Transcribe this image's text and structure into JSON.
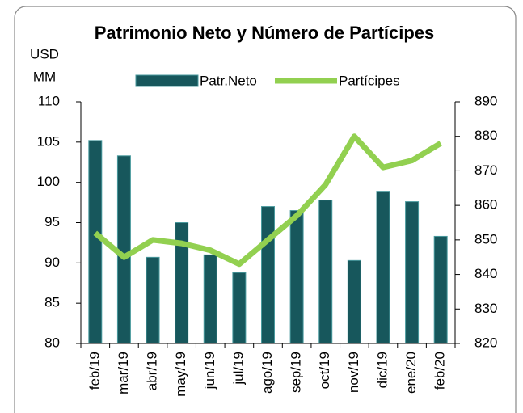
{
  "chart_data": {
    "type": "bar-line",
    "title": "Patrimonio Neto y Número de Partícipes",
    "y_label": [
      "USD",
      "MM"
    ],
    "categories": [
      "feb/19",
      "mar/19",
      "abr/19",
      "may/19",
      "jun/19",
      "jul/19",
      "ago/19",
      "sep/19",
      "oct/19",
      "nov/19",
      "dic/19",
      "ene/20",
      "feb/20"
    ],
    "series": [
      {
        "name": "Patr.Neto",
        "type": "bar",
        "color": "#17575c",
        "values": [
          105.2,
          103.3,
          90.7,
          95.0,
          91.0,
          88.8,
          97.0,
          96.5,
          97.8,
          90.3,
          98.9,
          97.6,
          93.3
        ]
      },
      {
        "name": "Partícipes",
        "type": "line",
        "axis": "y2",
        "color": "#92d050",
        "values": [
          852,
          845,
          850,
          849,
          847,
          843,
          850,
          857,
          866,
          880,
          871,
          873,
          878
        ]
      }
    ],
    "ylim": [
      80,
      110
    ],
    "yticks": [
      80,
      85,
      90,
      95,
      100,
      105,
      110
    ],
    "y2lim": [
      820,
      890
    ],
    "y2ticks": [
      820,
      830,
      840,
      850,
      860,
      870,
      880,
      890
    ],
    "grid": false,
    "legend": "top"
  }
}
